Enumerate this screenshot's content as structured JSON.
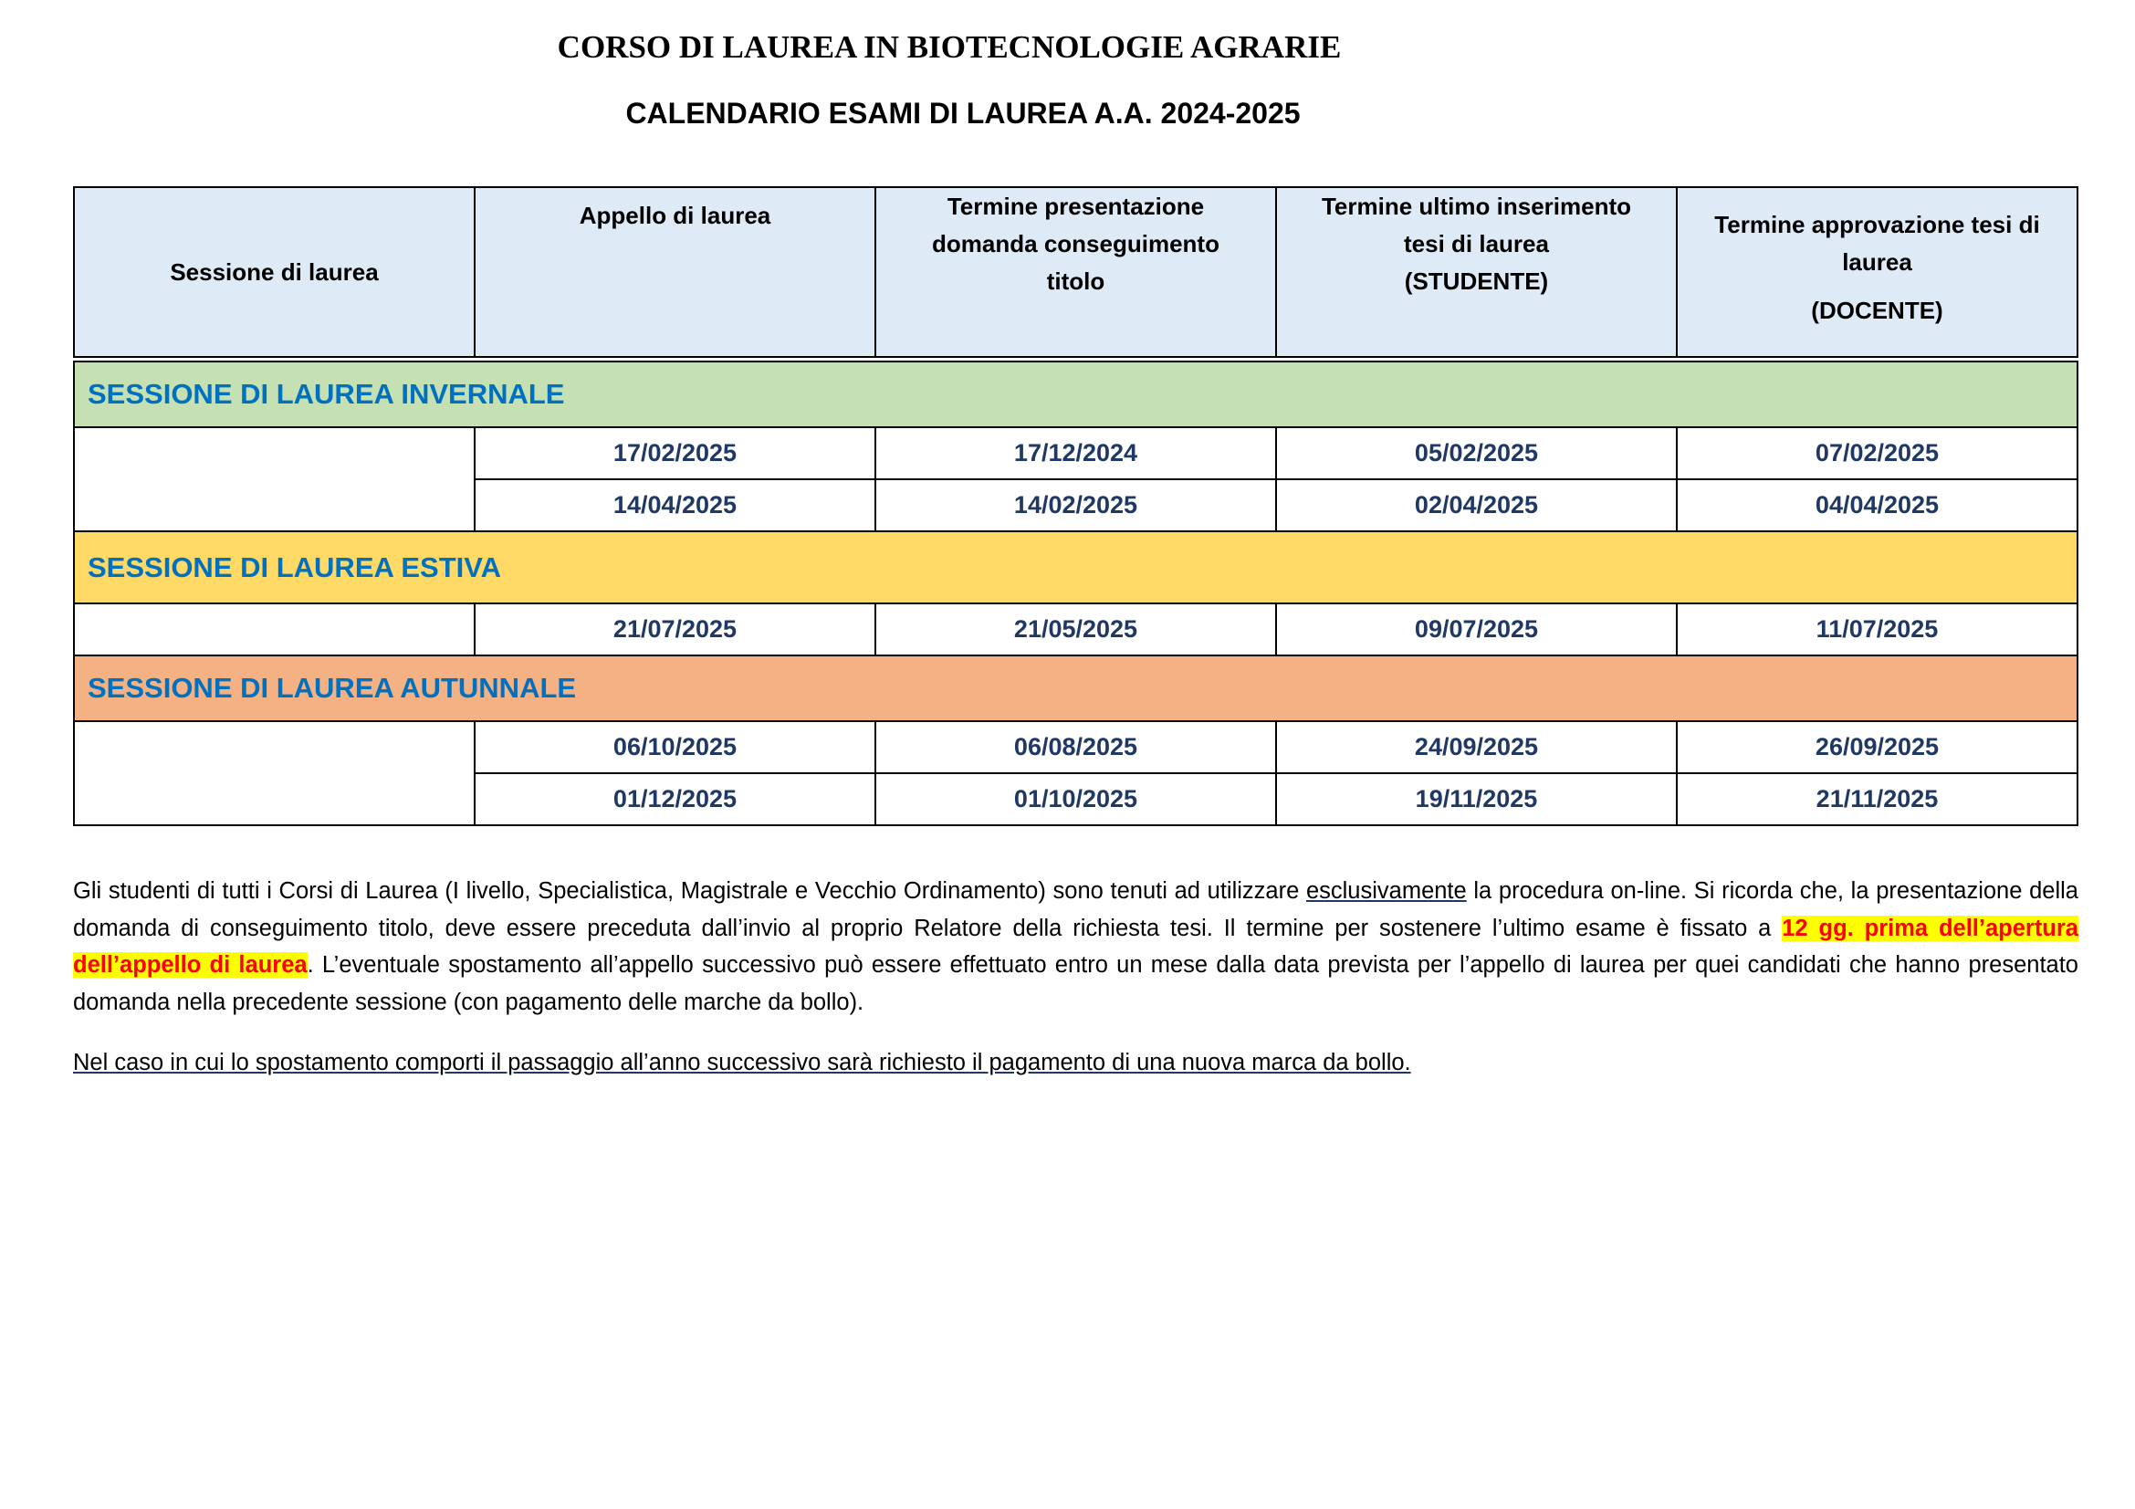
{
  "title": "CORSO DI LAUREA IN BIOTECNOLOGIE AGRARIE",
  "subtitle": "CALENDARIO ESAMI DI LAUREA A.A. 2024-2025",
  "headers": {
    "c1": "Sessione di laurea",
    "c2": "Appello di laurea",
    "c3": "Termine presentazione domanda conseguimento titolo",
    "c4": "Termine ultimo inserimento tesi di laurea",
    "c4b": "(STUDENTE)",
    "c5": "Termine approvazione tesi di laurea",
    "c5b": "(DOCENTE)"
  },
  "colors": {
    "header_bg": "#DEEAF6",
    "invernale": "#C5E0B3",
    "estiva": "#FFD966",
    "autunnale": "#F4B183",
    "session_text": "#0070C0",
    "date_text": "#1F3864",
    "highlight": "#FFFF00"
  },
  "sessions": [
    {
      "name": "SESSIONE DI LAUREA INVERNALE",
      "rows": [
        [
          "17/02/2025",
          "17/12/2024",
          "05/02/2025",
          "07/02/2025"
        ],
        [
          "14/04/2025",
          "14/02/2025",
          "02/04/2025",
          "04/04/2025"
        ]
      ]
    },
    {
      "name": "SESSIONE DI LAUREA ESTIVA",
      "rows": [
        [
          "21/07/2025",
          "21/05/2025",
          "09/07/2025",
          "11/07/2025"
        ]
      ]
    },
    {
      "name": "SESSIONE DI LAUREA AUTUNNALE",
      "rows": [
        [
          "06/10/2025",
          "06/08/2025",
          "24/09/2025",
          "26/09/2025"
        ],
        [
          "01/12/2025",
          "01/10/2025",
          "19/11/2025",
          "21/11/2025"
        ]
      ]
    }
  ],
  "notes": {
    "p1a": "Gli studenti di tutti i Corsi di Laurea (I livello, Specialistica, Magistrale e Vecchio Ordinamento) sono tenuti ad utilizzare ",
    "p1u": "esclusivamente",
    "p1b": " la procedura on-line. Si ricorda che, la presentazione della domanda di conseguimento titolo, deve essere preceduta dall’invio al proprio Relatore della richiesta tesi. Il termine per sostenere l’ultimo esame è fissato a ",
    "p1h": "12 gg. prima dell’apertura dell’appello di laurea",
    "p1c": ". L’eventuale spostamento all’appello successivo può essere effettuato entro un mese dalla data prevista per l’appello di laurea per quei candidati che hanno presentato domanda nella precedente sessione (con pagamento delle marche da bollo).",
    "p2": "Nel caso in cui lo spostamento comporti il passaggio all’anno successivo sarà richiesto il pagamento di una nuova marca da bollo."
  }
}
